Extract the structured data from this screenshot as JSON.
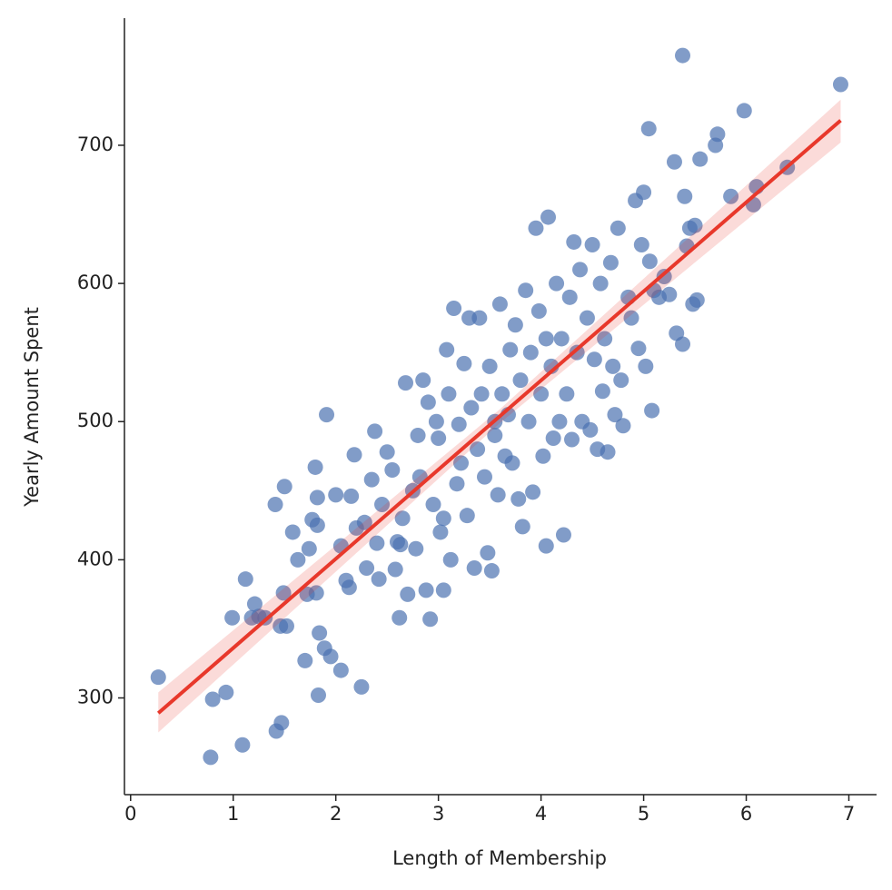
{
  "chart_data": {
    "type": "scatter",
    "x_label": "Length of Membership",
    "y_label": "Yearly Amount Spent",
    "color": "#4c72b0",
    "line_color": "#e8382b",
    "xlim": [
      -0.06,
      7.27
    ],
    "ylim": [
      230,
      792
    ],
    "xticks": [
      0,
      1,
      2,
      3,
      4,
      5,
      6,
      7
    ],
    "yticks": [
      300,
      400,
      500,
      600,
      700
    ],
    "x": [
      0.27,
      0.78,
      0.8,
      0.93,
      0.99,
      1.09,
      1.12,
      1.18,
      1.21,
      1.25,
      1.41,
      1.42,
      1.47,
      1.5,
      1.52,
      1.49,
      1.46,
      1.58,
      1.63,
      1.7,
      1.72,
      1.74,
      1.77,
      1.8,
      1.81,
      1.83,
      1.84,
      1.82,
      1.82,
      1.89,
      1.91,
      1.95,
      2.0,
      2.05,
      2.05,
      2.1,
      2.13,
      2.15,
      2.18,
      2.2,
      2.25,
      2.28,
      2.3,
      2.35,
      2.38,
      2.4,
      2.42,
      2.45,
      2.5,
      2.55,
      2.58,
      2.6,
      2.62,
      2.65,
      2.68,
      2.7,
      2.75,
      2.78,
      2.8,
      2.82,
      2.85,
      2.88,
      2.9,
      2.92,
      2.95,
      2.98,
      3.0,
      3.02,
      3.05,
      3.08,
      3.1,
      3.12,
      3.15,
      3.18,
      3.2,
      3.22,
      3.25,
      3.28,
      3.3,
      3.32,
      3.35,
      3.38,
      3.4,
      3.42,
      3.45,
      3.48,
      3.5,
      3.52,
      3.55,
      3.58,
      3.6,
      3.62,
      3.65,
      3.68,
      3.7,
      3.72,
      3.75,
      3.78,
      3.8,
      3.82,
      3.85,
      3.88,
      3.9,
      3.92,
      3.95,
      3.98,
      4.0,
      4.02,
      4.05,
      4.07,
      4.1,
      4.12,
      4.15,
      4.18,
      4.2,
      4.22,
      4.25,
      4.28,
      4.3,
      4.32,
      4.35,
      4.38,
      4.4,
      4.45,
      4.48,
      4.5,
      4.52,
      4.55,
      4.58,
      4.6,
      4.62,
      4.65,
      4.68,
      4.7,
      4.72,
      4.75,
      4.78,
      4.8,
      4.85,
      4.88,
      4.92,
      4.95,
      4.98,
      5.0,
      5.02,
      5.05,
      5.06,
      5.08,
      5.1,
      5.15,
      5.2,
      5.25,
      5.3,
      5.32,
      5.38,
      5.4,
      5.42,
      5.45,
      5.48,
      5.5,
      5.52,
      5.55,
      5.7,
      5.72,
      5.85,
      5.98,
      6.07,
      6.1,
      6.4,
      6.92,
      5.38,
      1.31,
      2.63,
      3.05,
      3.55,
      4.05
    ],
    "values": [
      315,
      257,
      299,
      304,
      358,
      266,
      386,
      358,
      368,
      359,
      440,
      276,
      282,
      453,
      352,
      376,
      352,
      420,
      400,
      327,
      375,
      408,
      429,
      467,
      376,
      302,
      347,
      445,
      425,
      336,
      505,
      330,
      447,
      320,
      410,
      385,
      380,
      446,
      476,
      423,
      308,
      427,
      394,
      458,
      493,
      412,
      386,
      440,
      478,
      465,
      393,
      413,
      358,
      430,
      528,
      375,
      450,
      408,
      490,
      460,
      530,
      378,
      514,
      357,
      440,
      500,
      488,
      420,
      378,
      552,
      520,
      400,
      582,
      455,
      498,
      470,
      542,
      432,
      575,
      510,
      394,
      480,
      575,
      520,
      460,
      405,
      540,
      392,
      490,
      447,
      585,
      520,
      475,
      505,
      552,
      470,
      570,
      444,
      530,
      424,
      595,
      500,
      550,
      449,
      640,
      580,
      520,
      475,
      410,
      648,
      540,
      488,
      600,
      500,
      560,
      418,
      520,
      590,
      487,
      630,
      550,
      610,
      500,
      575,
      494,
      628,
      545,
      480,
      600,
      522,
      560,
      478,
      615,
      540,
      505,
      640,
      530,
      497,
      590,
      575,
      660,
      553,
      628,
      666,
      540,
      712,
      616,
      508,
      595,
      590,
      605,
      592,
      688,
      564,
      556,
      663,
      627,
      640,
      585,
      642,
      588,
      690,
      700,
      708,
      663,
      725,
      657,
      670,
      684,
      744,
      765,
      358,
      411,
      430,
      500,
      560
    ],
    "regression": {
      "x": [
        0.27,
        3.6,
        6.92
      ],
      "y": [
        289,
        504,
        718
      ],
      "ci_lower": [
        275,
        499,
        702
      ],
      "ci_upper": [
        304,
        509,
        733
      ]
    }
  }
}
